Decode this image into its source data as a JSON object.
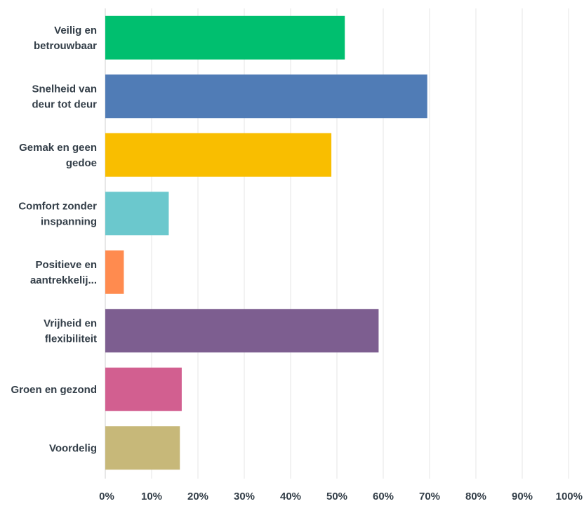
{
  "chart_data": {
    "type": "bar",
    "orientation": "horizontal",
    "categories": [
      [
        "Veilig en",
        "betrouwbaar"
      ],
      [
        "Snelheid van",
        "deur tot deur"
      ],
      [
        "Gemak en geen",
        "gedoe"
      ],
      [
        "Comfort zonder",
        "inspanning"
      ],
      [
        "Positieve en",
        "aantrekkelij..."
      ],
      [
        "Vrijheid en",
        "flexibiliteit"
      ],
      [
        "Groen en gezond"
      ],
      [
        "Voordelig"
      ]
    ],
    "values": [
      51.7,
      69.5,
      48.8,
      13.7,
      4.0,
      59.0,
      16.5,
      16.1
    ],
    "colors": [
      "#00bf6f",
      "#507cb6",
      "#f9be00",
      "#6bc8cd",
      "#ff8b4f",
      "#7d5e90",
      "#d25f90",
      "#c7b879"
    ],
    "xlim": [
      0,
      100
    ],
    "xticks": [
      0,
      10,
      20,
      30,
      40,
      50,
      60,
      70,
      80,
      90,
      100
    ],
    "xtick_labels": [
      "0%",
      "10%",
      "20%",
      "30%",
      "40%",
      "50%",
      "60%",
      "70%",
      "80%",
      "90%",
      "100%"
    ],
    "grid": true,
    "legend": "none"
  }
}
